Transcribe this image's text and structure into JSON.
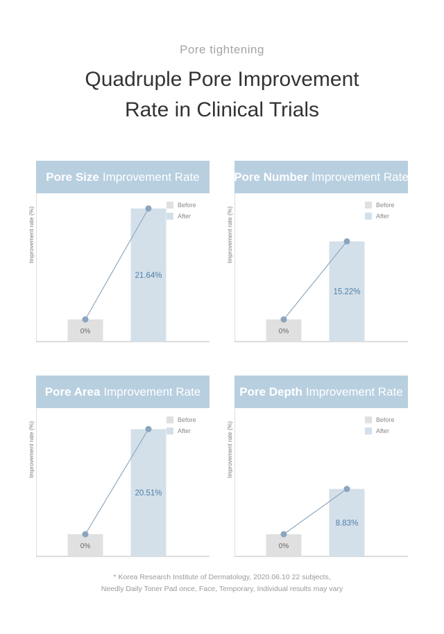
{
  "subtitle": "Pore tightening",
  "title_line1": "Quadruple Pore Improvement",
  "title_line2": "Rate in Clinical Trials",
  "legend": {
    "before": "Before",
    "after": "After"
  },
  "ylabel": "Improvement rate (%)",
  "colors": {
    "header": "#b8cfe0",
    "before_bar": "#e0e0e0",
    "after_bar": "#d3e0ea",
    "line": "#8fa8bd",
    "point": "#8aa5be",
    "value_text": "#4f7fa8"
  },
  "footnote_line1": "* Korea Research Institute of Dermatology, 2020.06.10 22 subjects,",
  "footnote_line2": "Needly Daily Toner Pad once, Face, Temporary, Individual results may vary",
  "chart_data": [
    {
      "type": "bar",
      "title_bold": "Pore Size",
      "title_rest": "Improvement Rate",
      "categories": [
        "Before",
        "After"
      ],
      "values": [
        0,
        21.64
      ],
      "labels": [
        "0%",
        "21.64%"
      ]
    },
    {
      "type": "bar",
      "title_bold": "Pore Number",
      "title_rest": "Improvement Rate",
      "categories": [
        "Before",
        "After"
      ],
      "values": [
        0,
        15.22
      ],
      "labels": [
        "0%",
        "15.22%"
      ]
    },
    {
      "type": "bar",
      "title_bold": "Pore Area",
      "title_rest": "Improvement Rate",
      "categories": [
        "Before",
        "After"
      ],
      "values": [
        0,
        20.51
      ],
      "labels": [
        "0%",
        "20.51%"
      ]
    },
    {
      "type": "bar",
      "title_bold": "Pore Depth",
      "title_rest": "Improvement Rate",
      "categories": [
        "Before",
        "After"
      ],
      "values": [
        0,
        8.83
      ],
      "labels": [
        "0%",
        "8.83%"
      ]
    }
  ]
}
